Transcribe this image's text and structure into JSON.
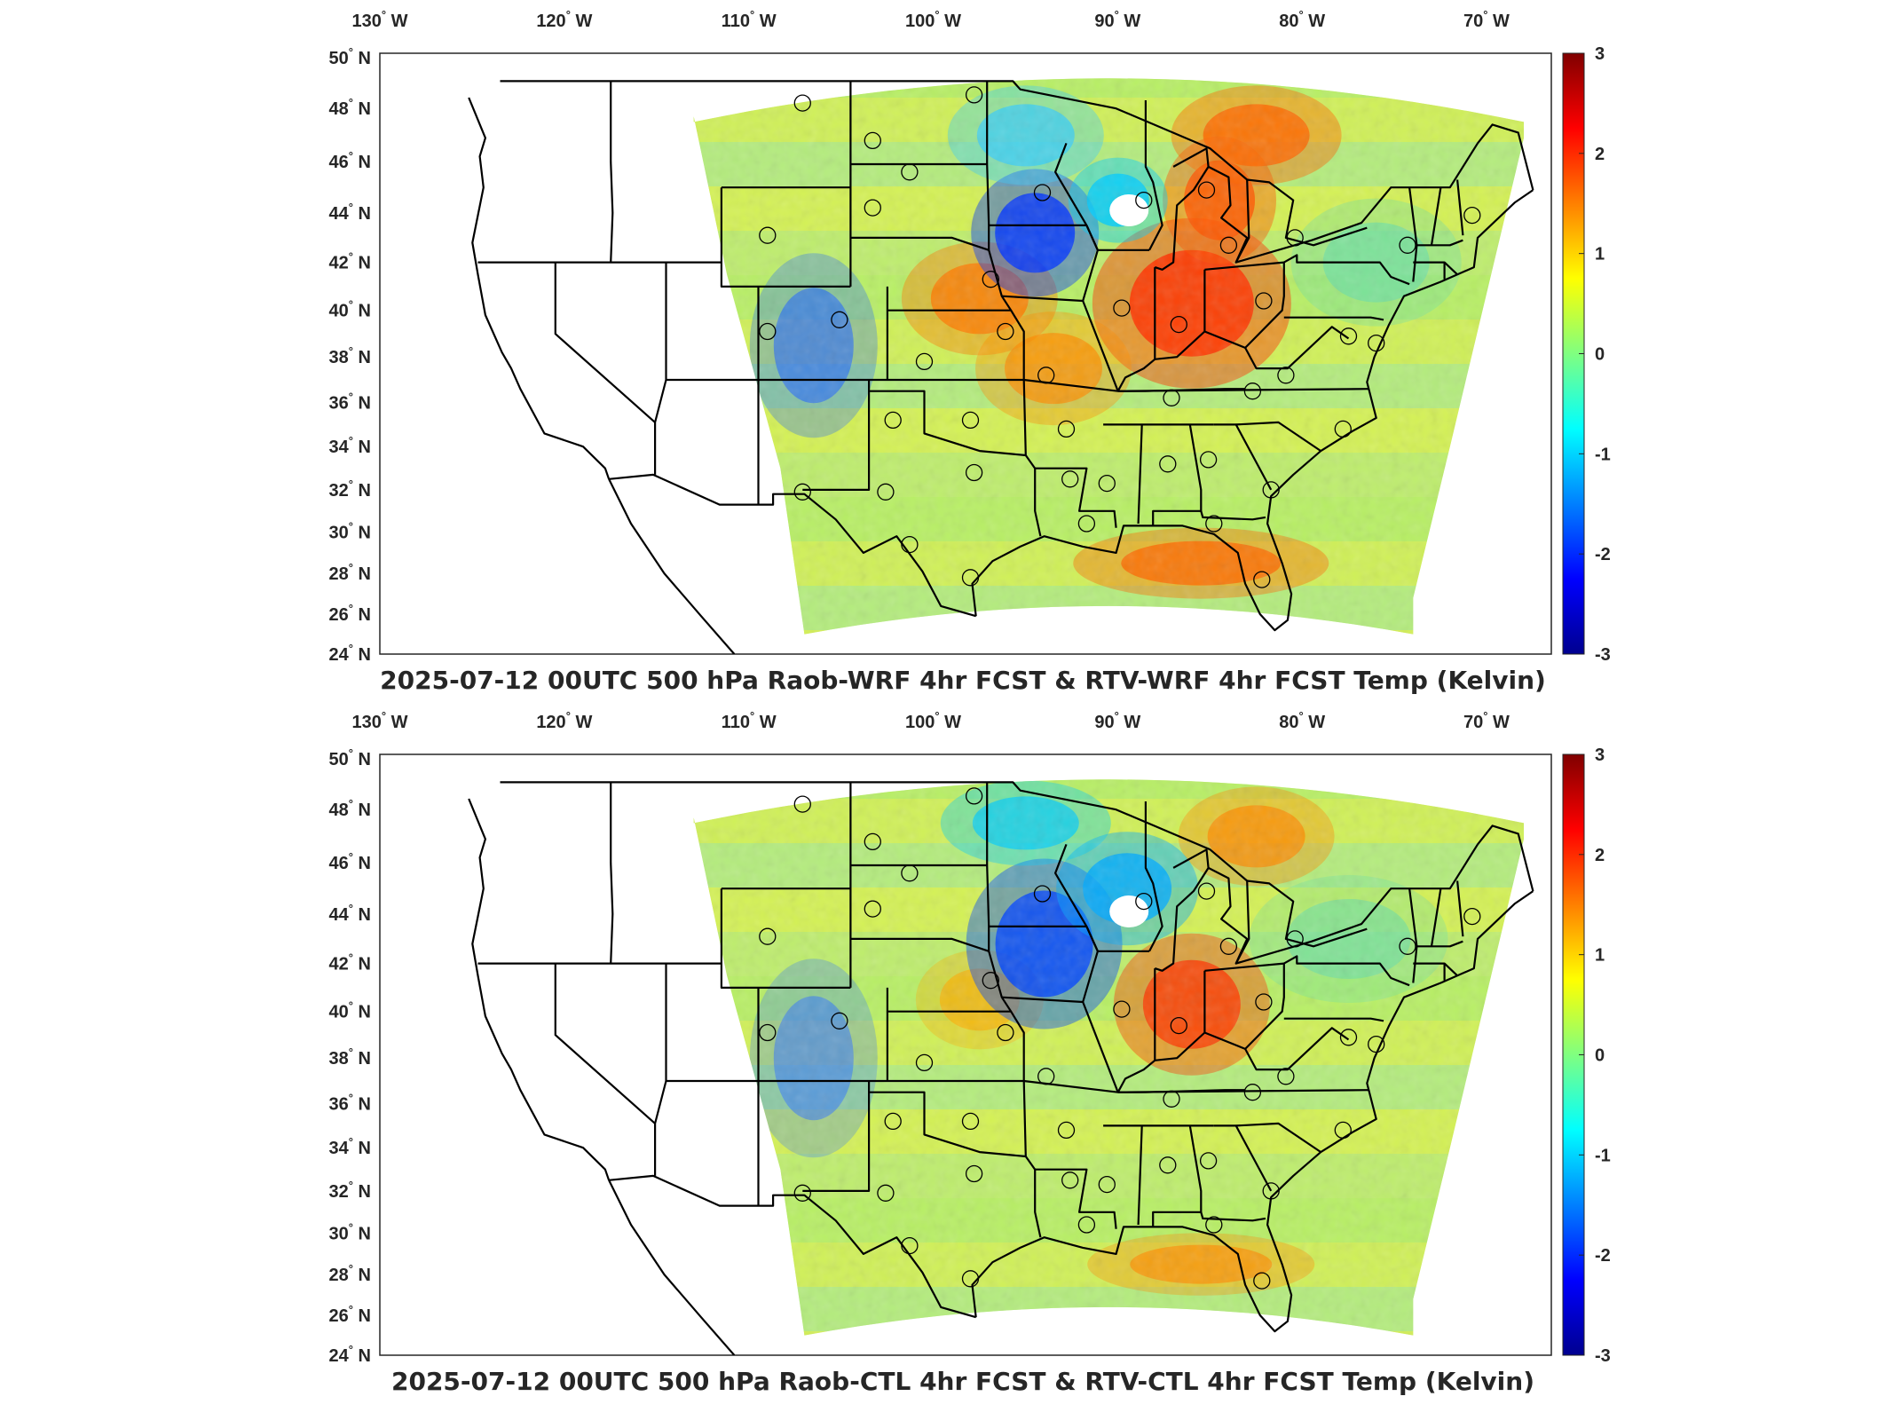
{
  "figure": {
    "panels": [
      {
        "id": "top",
        "title": "2025-07-12 00UTC 500 hPa Raob-WRF 4hr FCST & RTV-WRF 4hr FCST Temp (Kelvin)"
      },
      {
        "id": "bottom",
        "title": "2025-07-12 00UTC 500 hPa Raob-CTL 4hr FCST & RTV-CTL 4hr FCST Temp (Kelvin)"
      }
    ],
    "lon_ticks": [
      {
        "value": "130",
        "hemi": "W"
      },
      {
        "value": "120",
        "hemi": "W"
      },
      {
        "value": "110",
        "hemi": "W"
      },
      {
        "value": "100",
        "hemi": "W"
      },
      {
        "value": "90",
        "hemi": "W"
      },
      {
        "value": "80",
        "hemi": "W"
      },
      {
        "value": "70",
        "hemi": "W"
      }
    ],
    "lat_ticks": [
      {
        "value": "50",
        "hemi": "N"
      },
      {
        "value": "48",
        "hemi": "N"
      },
      {
        "value": "46",
        "hemi": "N"
      },
      {
        "value": "44",
        "hemi": "N"
      },
      {
        "value": "42",
        "hemi": "N"
      },
      {
        "value": "40",
        "hemi": "N"
      },
      {
        "value": "38",
        "hemi": "N"
      },
      {
        "value": "36",
        "hemi": "N"
      },
      {
        "value": "34",
        "hemi": "N"
      },
      {
        "value": "32",
        "hemi": "N"
      },
      {
        "value": "30",
        "hemi": "N"
      },
      {
        "value": "28",
        "hemi": "N"
      },
      {
        "value": "26",
        "hemi": "N"
      },
      {
        "value": "24",
        "hemi": "N"
      }
    ],
    "colorbar": {
      "colormap": "jet",
      "min": -3,
      "max": 3,
      "ticks": [
        "3",
        "2",
        "1",
        "0",
        "-1",
        "-2",
        "-3"
      ]
    },
    "raob_stations": [
      [
        -106.6,
        48.2
      ],
      [
        -102.8,
        46.8
      ],
      [
        -100.8,
        45.6
      ],
      [
        -97.3,
        48.5
      ],
      [
        -93.6,
        44.8
      ],
      [
        -88.1,
        44.5
      ],
      [
        -84.7,
        44.9
      ],
      [
        -83.5,
        42.7
      ],
      [
        -79.9,
        43.0
      ],
      [
        -73.8,
        42.7
      ],
      [
        -70.3,
        43.9
      ],
      [
        -108.5,
        43.1
      ],
      [
        -102.8,
        44.2
      ],
      [
        -96.4,
        41.3
      ],
      [
        -89.3,
        40.1
      ],
      [
        -86.2,
        39.4
      ],
      [
        -81.6,
        40.4
      ],
      [
        -77.0,
        38.9
      ],
      [
        -75.5,
        38.6
      ],
      [
        -95.6,
        39.1
      ],
      [
        -100.0,
        37.8
      ],
      [
        -104.6,
        39.6
      ],
      [
        -108.5,
        39.1
      ],
      [
        -93.4,
        37.2
      ],
      [
        -86.6,
        36.2
      ],
      [
        -82.2,
        36.5
      ],
      [
        -80.4,
        37.2
      ],
      [
        -77.3,
        34.8
      ],
      [
        -97.5,
        35.2
      ],
      [
        -92.3,
        34.8
      ],
      [
        -101.7,
        35.2
      ],
      [
        -97.3,
        32.8
      ],
      [
        -92.1,
        32.5
      ],
      [
        -90.1,
        32.3
      ],
      [
        -86.8,
        33.2
      ],
      [
        -84.6,
        33.4
      ],
      [
        -81.2,
        32.0
      ],
      [
        -106.6,
        31.9
      ],
      [
        -102.1,
        31.9
      ],
      [
        -100.8,
        29.4
      ],
      [
        -97.5,
        27.8
      ],
      [
        -91.2,
        30.4
      ],
      [
        -84.3,
        30.4
      ],
      [
        -81.7,
        27.7
      ]
    ]
  }
}
